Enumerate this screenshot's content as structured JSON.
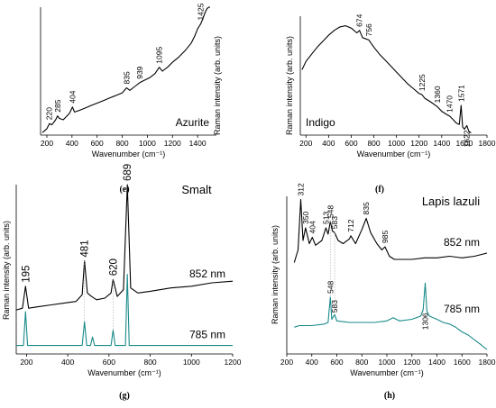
{
  "chart_data": [
    {
      "panel_label": "(e)",
      "type": "line",
      "xlabel": "Wavenumber (cm⁻¹)",
      "ylabel": "Raman intensity (arb. units)",
      "xlim": [
        150,
        1550
      ],
      "xticks": [
        200,
        400,
        600,
        800,
        1000,
        1200,
        1400
      ],
      "legend": [
        {
          "label": "Azurite"
        }
      ],
      "peaks": [
        220,
        285,
        404,
        835,
        939,
        1095,
        1425
      ],
      "series": [
        {
          "color": "#000000",
          "x": [
            165,
            200,
            220,
            240,
            270,
            285,
            300,
            330,
            360,
            380,
            404,
            420,
            450,
            500,
            550,
            600,
            650,
            700,
            750,
            800,
            835,
            860,
            900,
            939,
            980,
            1020,
            1060,
            1095,
            1120,
            1160,
            1200,
            1250,
            1300,
            1350,
            1380,
            1400,
            1425,
            1445,
            1460,
            1475,
            1490,
            1500
          ],
          "y": [
            0.02,
            0.05,
            0.09,
            0.08,
            0.12,
            0.15,
            0.13,
            0.12,
            0.15,
            0.17,
            0.22,
            0.18,
            0.19,
            0.21,
            0.23,
            0.25,
            0.27,
            0.29,
            0.31,
            0.33,
            0.37,
            0.35,
            0.38,
            0.41,
            0.43,
            0.45,
            0.48,
            0.53,
            0.5,
            0.53,
            0.57,
            0.61,
            0.66,
            0.72,
            0.78,
            0.83,
            0.87,
            0.92,
            0.96,
            0.99,
            1.0,
            1.0
          ]
        }
      ]
    },
    {
      "panel_label": "(f)",
      "type": "line",
      "xlabel": "Wavenumber (cm⁻¹)",
      "ylabel": "Raman intensity (arb. units)",
      "xlim": [
        150,
        1800
      ],
      "xticks": [
        200,
        400,
        600,
        800,
        1000,
        1200,
        1400,
        1600,
        1800
      ],
      "legend": [
        {
          "label": "Indigo"
        }
      ],
      "peaks": [
        674,
        756,
        1225,
        1360,
        1470,
        1571,
        1622
      ],
      "series": [
        {
          "color": "#000000",
          "x": [
            165,
            200,
            250,
            300,
            350,
            400,
            450,
            500,
            550,
            600,
            650,
            674,
            700,
            756,
            800,
            850,
            900,
            950,
            1000,
            1050,
            1100,
            1150,
            1200,
            1225,
            1250,
            1300,
            1360,
            1400,
            1450,
            1470,
            1500,
            1530,
            1555,
            1571,
            1585,
            1600,
            1622,
            1640,
            1660
          ],
          "y": [
            0.55,
            0.62,
            0.68,
            0.74,
            0.79,
            0.84,
            0.88,
            0.91,
            0.92,
            0.9,
            0.86,
            0.88,
            0.82,
            0.8,
            0.74,
            0.68,
            0.63,
            0.58,
            0.53,
            0.48,
            0.43,
            0.39,
            0.35,
            0.34,
            0.31,
            0.28,
            0.24,
            0.2,
            0.17,
            0.16,
            0.13,
            0.1,
            0.09,
            0.25,
            0.07,
            0.05,
            0.08,
            0.03,
            0.02
          ]
        }
      ]
    },
    {
      "panel_label": "(g)",
      "type": "line",
      "xlabel": "Wavenumber (cm⁻¹)",
      "ylabel": "Raman intensity (arb. units)",
      "title": "Smalt",
      "xlim": [
        150,
        1200
      ],
      "xticks": [
        200,
        400,
        600,
        800,
        1000,
        1200
      ],
      "peaks": [
        195,
        481,
        620,
        689
      ],
      "series": [
        {
          "name": "852 nm",
          "color": "#000000",
          "x": [
            150,
            180,
            195,
            210,
            260,
            320,
            380,
            440,
            470,
            481,
            495,
            515,
            540,
            580,
            610,
            620,
            640,
            670,
            689,
            705,
            740,
            800,
            900,
            1000,
            1100,
            1200
          ],
          "y": [
            0.26,
            0.27,
            0.4,
            0.27,
            0.28,
            0.29,
            0.3,
            0.31,
            0.35,
            0.55,
            0.36,
            0.34,
            0.32,
            0.33,
            0.36,
            0.44,
            0.34,
            0.38,
            1.0,
            0.39,
            0.36,
            0.37,
            0.39,
            0.4,
            0.42,
            0.43
          ]
        },
        {
          "name": "785 nm",
          "color": "#1a8a8a",
          "x": [
            150,
            185,
            195,
            205,
            300,
            470,
            481,
            492,
            510,
            520,
            530,
            610,
            620,
            630,
            680,
            689,
            698,
            800,
            1000,
            1200
          ],
          "y": [
            0.05,
            0.05,
            0.25,
            0.05,
            0.05,
            0.05,
            0.19,
            0.05,
            0.05,
            0.1,
            0.05,
            0.05,
            0.14,
            0.05,
            0.05,
            0.47,
            0.05,
            0.05,
            0.05,
            0.05
          ]
        }
      ]
    },
    {
      "panel_label": "(h)",
      "type": "line",
      "xlabel": "Wavenumber (cm⁻¹)",
      "ylabel": "Raman intensity (arb. units)",
      "title": "Lapis lazuli",
      "xlim": [
        200,
        1800
      ],
      "xticks": [
        200,
        400,
        600,
        800,
        1000,
        1200,
        1400,
        1600,
        1800
      ],
      "peaks_852": [
        312,
        350,
        404,
        513,
        548,
        583,
        712,
        835,
        985
      ],
      "peaks_785": [
        548,
        583,
        1306
      ],
      "series": [
        {
          "name": "852 nm",
          "color": "#000000",
          "x": [
            260,
            290,
            312,
            330,
            350,
            380,
            404,
            430,
            480,
            513,
            530,
            548,
            565,
            583,
            610,
            650,
            700,
            712,
            750,
            800,
            835,
            870,
            920,
            960,
            985,
            1020,
            1060,
            1100,
            1200,
            1300,
            1400,
            1500,
            1600,
            1700,
            1800
          ],
          "y": [
            0.58,
            0.66,
            0.98,
            0.72,
            0.8,
            0.7,
            0.74,
            0.69,
            0.72,
            0.8,
            0.76,
            0.84,
            0.78,
            0.77,
            0.72,
            0.7,
            0.73,
            0.75,
            0.7,
            0.79,
            0.86,
            0.77,
            0.7,
            0.66,
            0.68,
            0.62,
            0.6,
            0.6,
            0.6,
            0.61,
            0.61,
            0.62,
            0.61,
            0.62,
            0.64
          ]
        },
        {
          "name": "785 nm",
          "color": "#1a8a8a",
          "x": [
            260,
            300,
            400,
            500,
            530,
            548,
            560,
            583,
            600,
            700,
            800,
            900,
            1000,
            1050,
            1100,
            1200,
            1270,
            1290,
            1306,
            1320,
            1340,
            1400,
            1450,
            1500,
            1550,
            1600,
            1650,
            1700,
            1750,
            1780,
            1800
          ],
          "y": [
            0.17,
            0.18,
            0.18,
            0.19,
            0.2,
            0.36,
            0.22,
            0.25,
            0.21,
            0.2,
            0.2,
            0.2,
            0.21,
            0.23,
            0.21,
            0.22,
            0.24,
            0.28,
            0.45,
            0.27,
            0.24,
            0.22,
            0.2,
            0.19,
            0.17,
            0.14,
            0.12,
            0.09,
            0.06,
            0.04,
            0.03
          ]
        }
      ]
    }
  ]
}
